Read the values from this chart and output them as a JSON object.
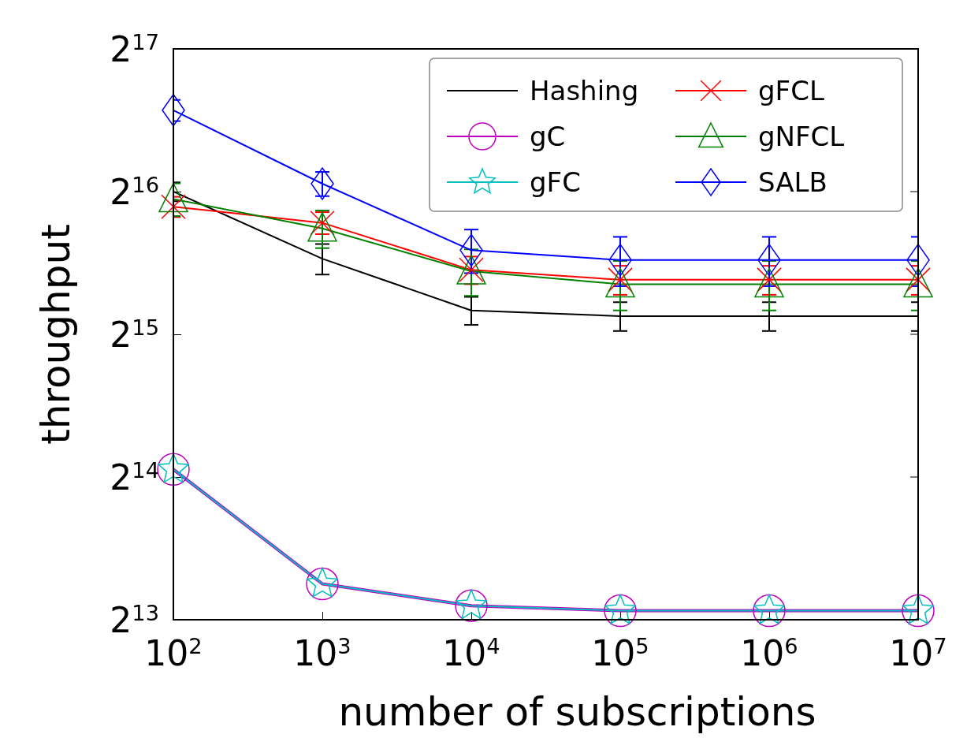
{
  "chart_data": {
    "type": "line",
    "xlabel": "number of subscriptions",
    "ylabel": "throughput",
    "log": "xy",
    "x": [
      100,
      1000,
      10000,
      100000,
      1000000,
      10000000
    ],
    "xlim": [
      100,
      10000000
    ],
    "xticks": [
      {
        "value": 100,
        "label": "10$^{2}$"
      },
      {
        "value": 1000,
        "label": "10$^{3}$"
      },
      {
        "value": 10000,
        "label": "10$^{4}$"
      },
      {
        "value": 100000,
        "label": "10$^{5}$"
      },
      {
        "value": 1000000,
        "label": "10$^{6}$"
      },
      {
        "value": 10000000,
        "label": "10$^{7}$"
      }
    ],
    "ylim": [
      8192,
      131072
    ],
    "yticks": [
      {
        "value": 8192,
        "label": "2$^{13}$"
      },
      {
        "value": 16384,
        "label": "2$^{14}$"
      },
      {
        "value": 32768,
        "label": "2$^{15}$"
      },
      {
        "value": 65536,
        "label": "2$^{16}$"
      },
      {
        "value": 131072,
        "label": "2$^{17}$"
      }
    ],
    "grid": false,
    "legend": "top right",
    "series": [
      {
        "name": "Hashing",
        "color": "#000000",
        "marker": "none",
        "values": [
          65536,
          47300,
          36800,
          35800,
          35800,
          35800
        ],
        "errors": [
          3000,
          3500,
          2500,
          2500,
          2500,
          2500
        ]
      },
      {
        "name": "gC",
        "color": "#bf00bf",
        "marker": "circle",
        "values": [
          17000,
          9750,
          8770,
          8560,
          8560,
          8560
        ]
      },
      {
        "name": "gFC",
        "color": "#00bfbf",
        "marker": "star",
        "values": [
          17000,
          9750,
          8770,
          8560,
          8560,
          8560
        ]
      },
      {
        "name": "gFCL",
        "color": "#ff0000",
        "marker": "cross",
        "values": [
          60900,
          56300,
          44800,
          42700,
          42700,
          42700
        ],
        "errors": [
          3000,
          3000,
          3000,
          3000,
          3000,
          3000
        ]
      },
      {
        "name": "gNFCL",
        "color": "#008000",
        "marker": "triangle",
        "values": [
          63200,
          54800,
          44500,
          41800,
          41800,
          41800
        ],
        "errors": [
          5000,
          5000,
          5000,
          5000,
          5000,
          5000
        ]
      },
      {
        "name": "SALB",
        "color": "#0000ff",
        "marker": "diamond",
        "values": [
          97300,
          68100,
          49300,
          47000,
          47000,
          47000
        ],
        "errors": [
          5000,
          4000,
          5200,
          5600,
          5600,
          5600
        ]
      }
    ]
  }
}
